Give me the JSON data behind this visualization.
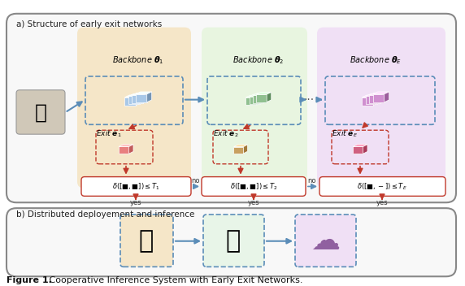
{
  "figure_title": "Figure 1.",
  "figure_caption": "   Cooperative Inference System with Early Exit Networks.",
  "panel_a_title": "a) Structure of early exit networks",
  "panel_b_title": "b) Distributed deployement and inference",
  "backbone_labels": [
    "Backbone $\\boldsymbol{\\theta}_1$",
    "Backbone $\\boldsymbol{\\theta}_2$",
    "Backbone $\\boldsymbol{\\theta}_E$"
  ],
  "exit_labels": [
    "Exit $\\boldsymbol{e}_1$",
    "Exit $\\boldsymbol{e}_2$",
    "Exit $\\boldsymbol{e}_E$"
  ],
  "decision_labels": [
    "$\\delta([\\square,\\square]) \\leq T_1$",
    "$\\delta([\\square,\\square]) \\leq T_2$",
    "$\\delta([\\square,-]) \\leq T_E$"
  ],
  "bg_color_a": "#f5f5f5",
  "bg_color_b": "#f5f5f5",
  "panel_bg": "#ffffff",
  "zone1_color": "#f5e6c8",
  "zone2_color": "#e8f5e0",
  "zone3_color": "#f0e0f5",
  "arrow_color": "#5b8db8",
  "red_arrow_color": "#c0392b",
  "box_border_blue": "#5b8db8",
  "box_border_red": "#c0392b",
  "backbone1_color": "#a8c8e8",
  "backbone2_color": "#90c090",
  "backbone3_color": "#d090d0",
  "exit1_color": "#e88080",
  "exit2_color": "#c8a060",
  "exit3_color": "#d06080",
  "watch_bg": "#f5e6c8",
  "laptop_bg": "#e8f5e8",
  "cloud_bg": "#f0e0f5"
}
